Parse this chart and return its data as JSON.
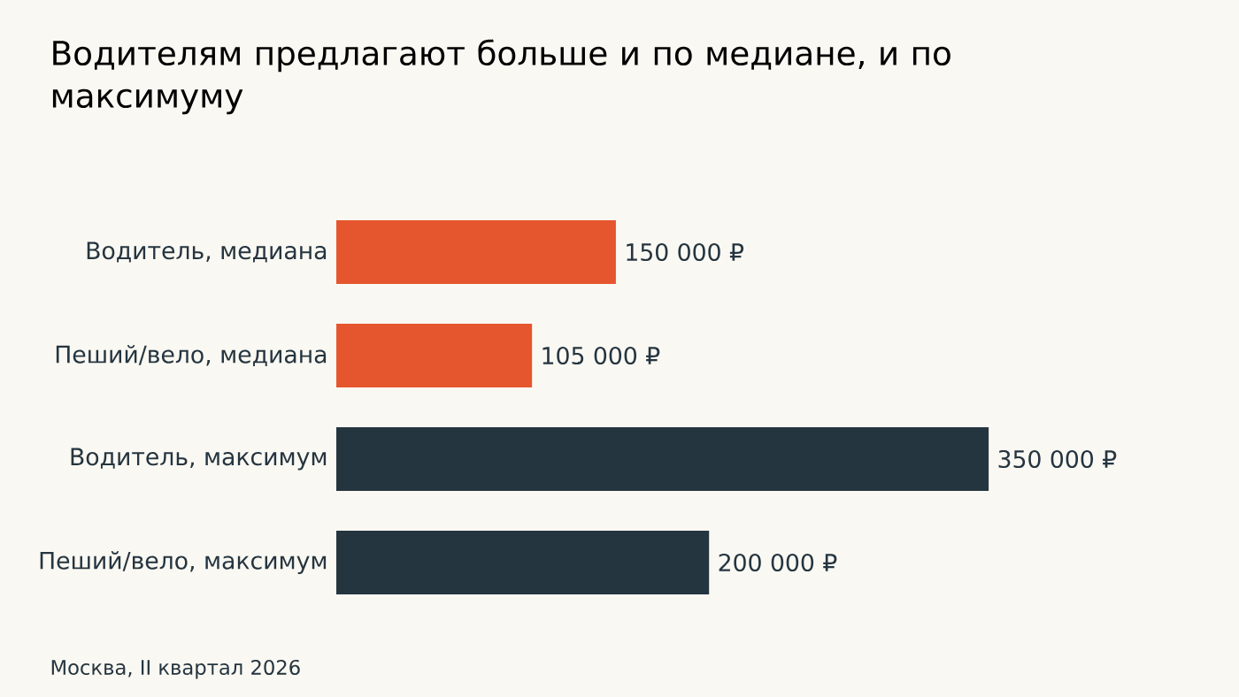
{
  "chart_data": {
    "type": "bar",
    "orientation": "horizontal",
    "title": "Водителям предлагают больше и по медиане, и по максимуму",
    "categories": [
      "Водитель, медиана",
      "Пеший/вело, медиана",
      "Водитель, максимум",
      "Пеший/вело, максимум"
    ],
    "values": [
      150000,
      105000,
      350000,
      200000
    ],
    "colors": [
      "#e5562e",
      "#e5562e",
      "#253540",
      "#253540"
    ],
    "value_labels": [
      "150 000 ₽",
      "105 000 ₽",
      "350 000 ₽",
      "200 000 ₽"
    ],
    "annotations": [
      "Москва, II квартал 2026"
    ]
  }
}
